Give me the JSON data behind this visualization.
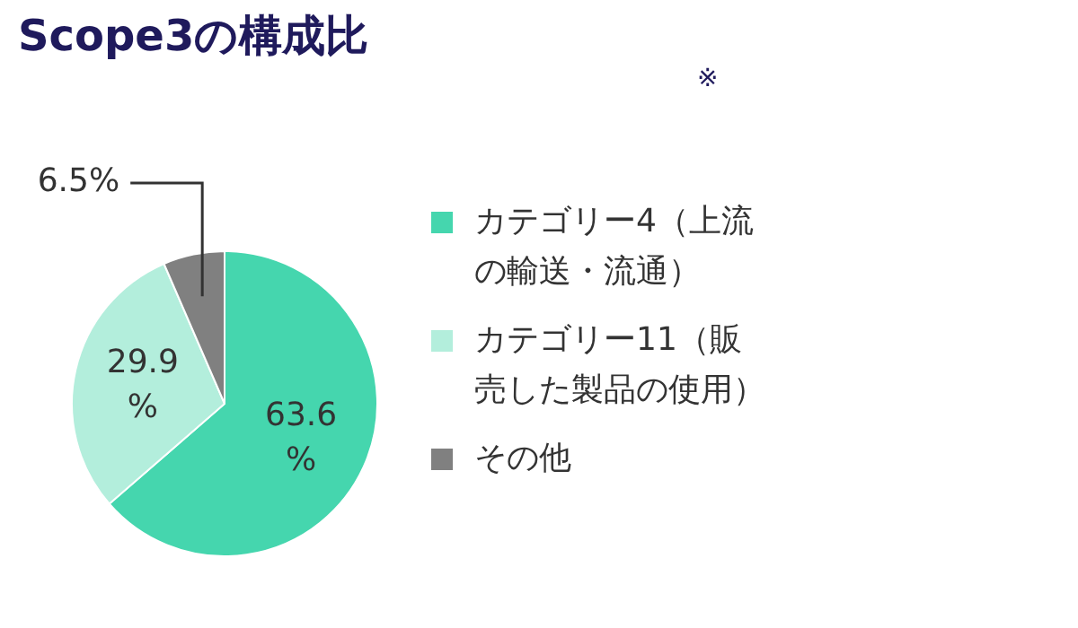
{
  "chart_data": {
    "type": "pie",
    "title": "Scope3の構成比",
    "subtitle": "※",
    "categories": [
      "カテゴリー4（上流の輸送・流通）",
      "カテゴリー11（販売した製品の使用）",
      "その他"
    ],
    "values": [
      63.6,
      29.9,
      6.5
    ],
    "colors": [
      "#45d6ae",
      "#b3eedc",
      "#808080"
    ],
    "value_labels": [
      "63.6%",
      "29.9%",
      "6.5%"
    ],
    "legend": "right"
  }
}
